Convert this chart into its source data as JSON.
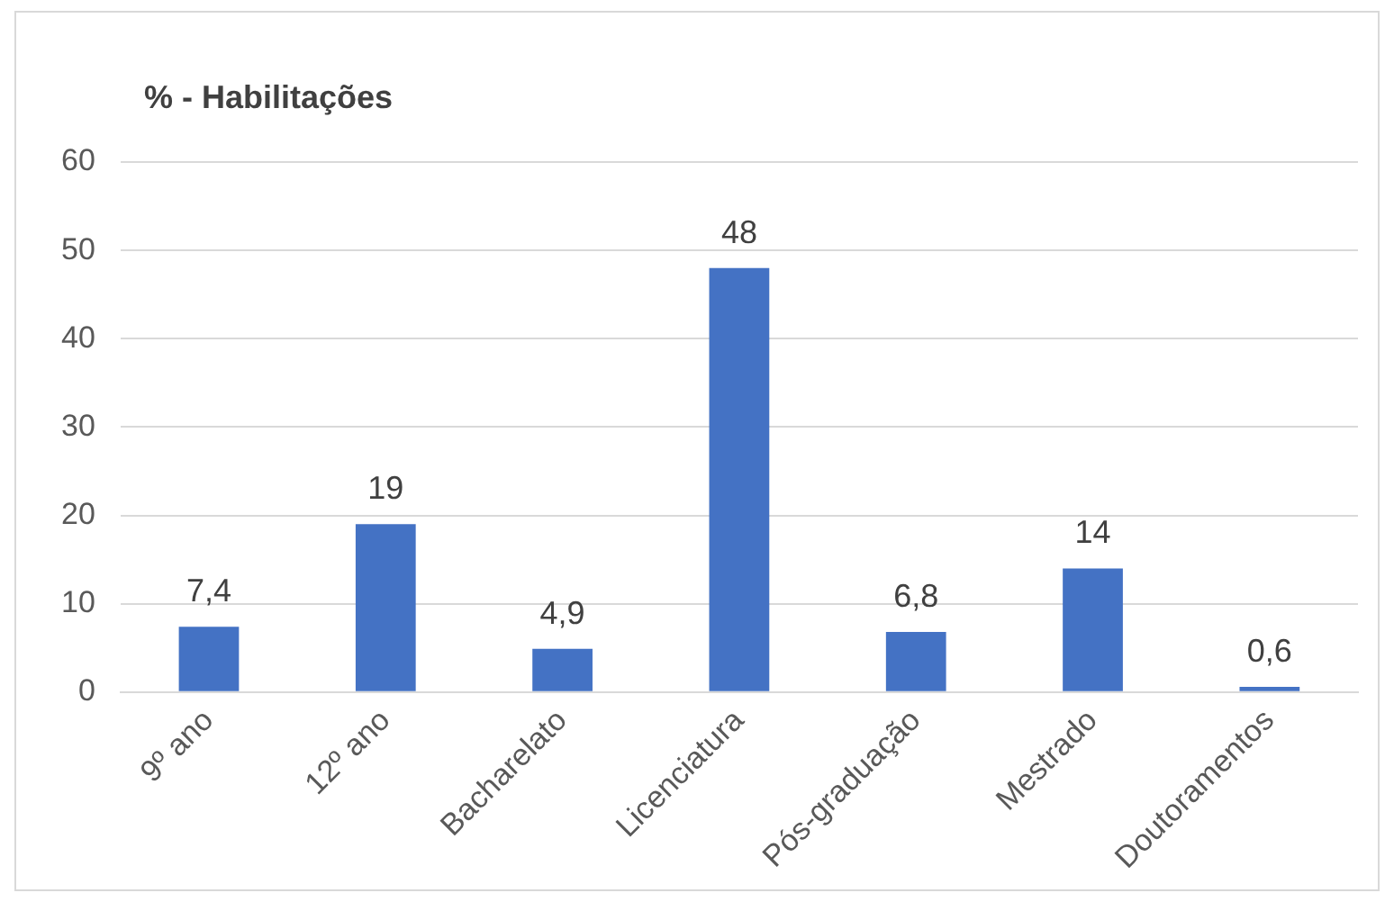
{
  "chart_data": {
    "type": "bar",
    "title": "% - Habilitações",
    "categories": [
      "9º ano",
      "12º ano",
      "Bacharelato",
      "Licenciatura",
      "Pós-graduação",
      "Mestrado",
      "Doutoramentos"
    ],
    "values": [
      7.4,
      19,
      4.9,
      48,
      6.8,
      14,
      0.6
    ],
    "value_labels": [
      "7,4",
      "19",
      "4,9",
      "48",
      "6,8",
      "14",
      "0,6"
    ],
    "color": "#4472c4",
    "ylim": [
      0,
      60
    ],
    "yticks": [
      0,
      10,
      20,
      30,
      40,
      50,
      60
    ],
    "grid": "y",
    "legend": false
  }
}
